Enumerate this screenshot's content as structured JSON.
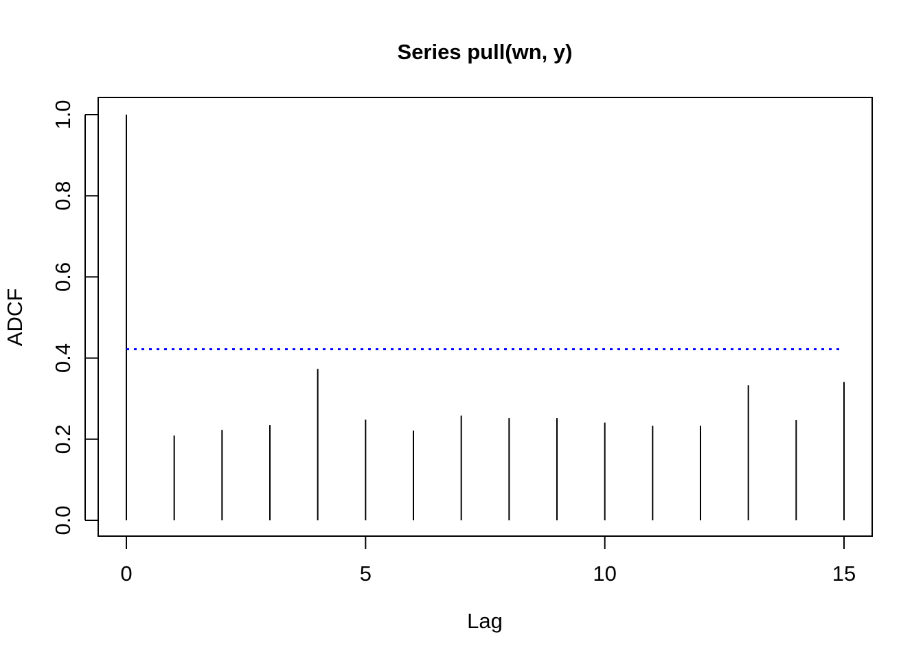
{
  "chart_data": {
    "type": "bar",
    "title": "Series pull(wn, y)",
    "xlabel": "Lag",
    "ylabel": "ADCF",
    "x": [
      0,
      1,
      2,
      3,
      4,
      5,
      6,
      7,
      8,
      9,
      10,
      11,
      12,
      13,
      14,
      15
    ],
    "values": [
      1.0,
      0.209,
      0.223,
      0.235,
      0.373,
      0.248,
      0.221,
      0.258,
      0.252,
      0.252,
      0.241,
      0.233,
      0.233,
      0.333,
      0.247,
      0.341
    ],
    "xlim": [
      0,
      15
    ],
    "ylim": [
      0,
      1.0
    ],
    "x_ticks": [
      0,
      5,
      10,
      15
    ],
    "y_ticks": [
      0.0,
      0.2,
      0.4,
      0.6,
      0.8,
      1.0
    ],
    "x_tick_labels": [
      "0",
      "5",
      "10",
      "15"
    ],
    "y_tick_labels": [
      "0.0",
      "0.2",
      "0.4",
      "0.6",
      "0.8",
      "1.0"
    ],
    "significance_line": {
      "value": 0.422,
      "color": "#0000ff",
      "style": "dotted"
    },
    "bar_color": "#000000",
    "grid": false
  }
}
